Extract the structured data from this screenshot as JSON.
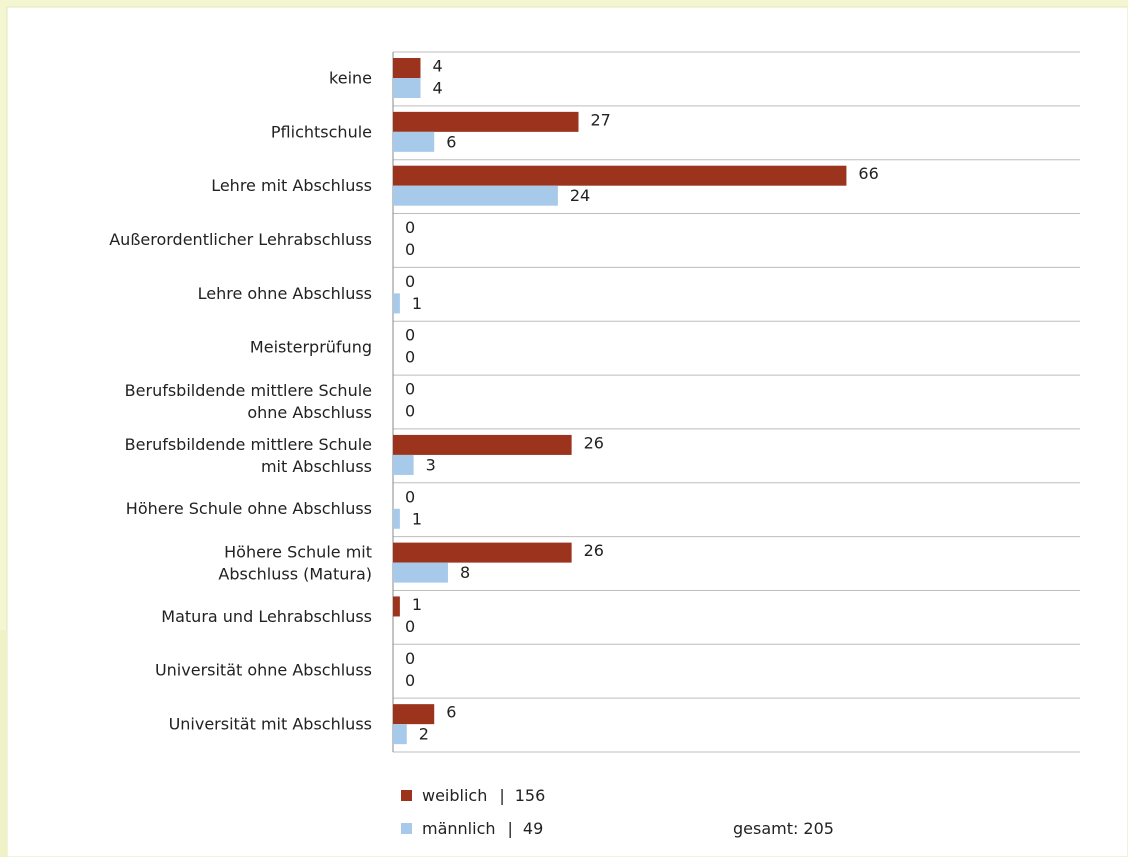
{
  "chart_data": {
    "type": "hbar",
    "categories": [
      "keine",
      "Pflichtschule",
      "Lehre mit Abschluss",
      "Außerordentlicher Lehrabschluss",
      "Lehre ohne Abschluss",
      "Meisterprüfung",
      "Berufsbildende mittlere Schule\nohne Abschluss",
      "Berufsbildende mittlere Schule\nmit Abschluss",
      "Höhere Schule ohne Abschluss",
      "Höhere Schule mit\nAbschluss (Matura)",
      "Matura und Lehrabschluss",
      "Universität ohne Abschluss",
      "Universität mit Abschluss"
    ],
    "series": [
      {
        "name": "weiblich",
        "color": "#9b331d",
        "total": 156,
        "values": [
          4,
          27,
          66,
          0,
          0,
          0,
          0,
          26,
          0,
          26,
          1,
          0,
          6
        ]
      },
      {
        "name": "männlich",
        "color": "#a7c9ea",
        "total": 49,
        "values": [
          4,
          6,
          24,
          0,
          1,
          0,
          0,
          3,
          1,
          8,
          0,
          0,
          2
        ]
      }
    ],
    "legend_separator": "|",
    "total_label": "gesamt:",
    "total": 205,
    "xlim": [
      0,
      100
    ]
  }
}
